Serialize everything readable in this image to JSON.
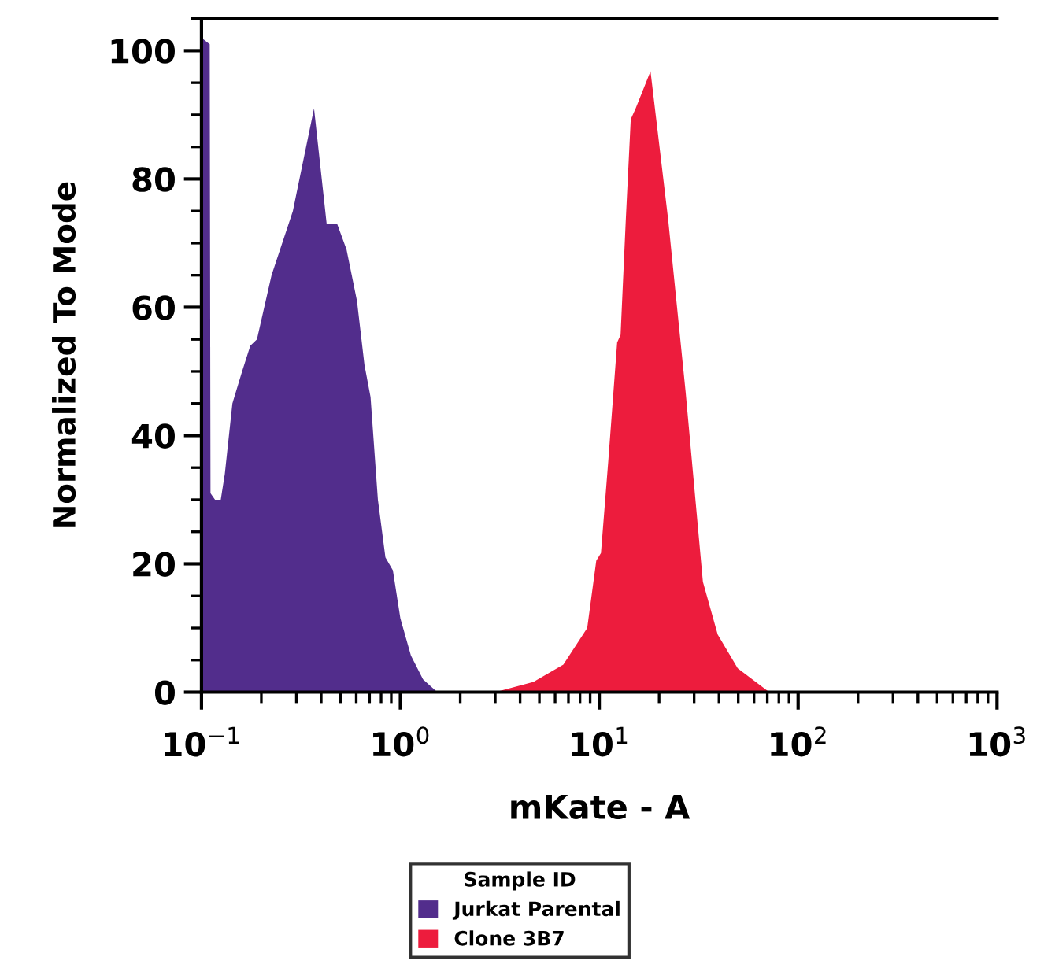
{
  "chart_data": {
    "type": "area",
    "xlabel": "mKate - A",
    "ylabel": "Normalized To Mode",
    "legend_title": "Sample ID",
    "log": "x",
    "xlim": [
      0.1,
      1000
    ],
    "xticks": [
      {
        "value": 0.1,
        "label": "10$^{−1}$"
      },
      {
        "value": 1,
        "label": "10$^{0}$"
      },
      {
        "value": 10,
        "label": "10$^{1}$"
      },
      {
        "value": 100,
        "label": "10$^{2}$"
      },
      {
        "value": 1000,
        "label": "10$^{3}$"
      }
    ],
    "ylim": [
      0,
      105
    ],
    "yticks": [
      0,
      20,
      40,
      60,
      80,
      100
    ],
    "grid": false,
    "legend": "bottom",
    "series": [
      {
        "name": "Jurkat Parental",
        "color": "#522d8c",
        "x": [
          0.1,
          0.11,
          0.111,
          0.117,
          0.125,
          0.131,
          0.143,
          0.16,
          0.176,
          0.19,
          0.225,
          0.288,
          0.368,
          0.426,
          0.481,
          0.536,
          0.605,
          0.66,
          0.708,
          0.771,
          0.841,
          0.917,
          1.0,
          1.13,
          1.3,
          1.51,
          1.7
        ],
        "values": [
          102,
          101,
          31,
          30,
          30,
          34,
          45,
          50,
          54,
          55,
          65,
          75,
          91,
          73,
          73,
          69,
          61,
          51,
          46,
          30,
          21,
          19,
          11.5,
          5.7,
          2,
          0.2,
          0
        ]
      },
      {
        "name": "Clone 3B7",
        "color": "#ed1c3d",
        "x": [
          3.0,
          4.67,
          6.6,
          8.7,
          9.66,
          10.2,
          11.1,
          12.3,
          12.8,
          13.6,
          14.4,
          15.2,
          18.1,
          22.2,
          27.2,
          33.2,
          39.4,
          49.7,
          70.3
        ],
        "values": [
          0,
          1.6,
          4.3,
          10,
          20.5,
          21.7,
          36,
          54.5,
          55.7,
          73.7,
          89.3,
          90.9,
          96.8,
          73.7,
          46.7,
          17.2,
          9,
          3.7,
          0.2
        ]
      }
    ]
  }
}
